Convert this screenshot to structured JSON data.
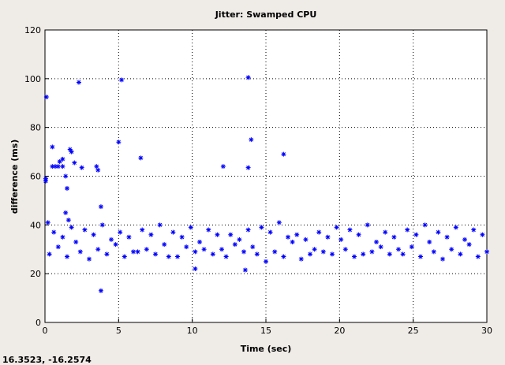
{
  "chart_data": {
    "type": "scatter",
    "title": "Jitter: Swamped CPU",
    "x_label": "Time (sec)",
    "y_label": "difference (ms)",
    "x": [
      0.3,
      0.6,
      0.9,
      1.2,
      1.5,
      1.8,
      2.1,
      2.4,
      2.7,
      3,
      3.3,
      3.6,
      3.9,
      4.2,
      4.5,
      4.8,
      5.1,
      5.4,
      5.7,
      6,
      6.3,
      6.6,
      6.9,
      7.2,
      7.5,
      7.8,
      8.1,
      8.4,
      8.7,
      9,
      9.3,
      9.6,
      9.9,
      10.2,
      10.5,
      10.8,
      11.1,
      11.4,
      11.7,
      12,
      12.3,
      12.6,
      12.9,
      13.2,
      13.5,
      13.8,
      14.1,
      14.4,
      14.7,
      15,
      15.3,
      15.6,
      15.9,
      16.2,
      16.5,
      16.8,
      17.1,
      17.4,
      17.7,
      18,
      18.3,
      18.6,
      18.9,
      19.2,
      19.5,
      19.8,
      20.1,
      20.4,
      20.7,
      21,
      21.3,
      21.6,
      21.9,
      22.2,
      22.5,
      22.8,
      23.1,
      23.4,
      23.7,
      24,
      24.3,
      24.6,
      24.9,
      25.2,
      25.5,
      25.8,
      26.1,
      26.4,
      26.7,
      27,
      27.3,
      27.6,
      27.9,
      28.2,
      28.5,
      28.8,
      29.1,
      29.4,
      29.7,
      30,
      0.1,
      0.05,
      0.05,
      0.5,
      0.5,
      0.7,
      0.9,
      1.0,
      1.2,
      1.2,
      1.4,
      1.5,
      1.7,
      1.8,
      2.0,
      2.3,
      2.5,
      3.5,
      3.6,
      3.8,
      3.8,
      5.0,
      5.2,
      6.5,
      12.1,
      13.8,
      13.8,
      14.0,
      16.2,
      10.2,
      13.6,
      0.2,
      1.4,
      1.6
    ],
    "values": [
      28,
      37,
      31,
      35,
      27,
      39,
      33,
      29,
      38,
      26,
      36,
      30,
      40,
      28,
      34,
      32,
      37,
      27,
      35,
      29,
      29,
      38,
      30,
      36,
      28,
      40,
      32,
      27,
      37,
      27,
      35,
      31,
      39,
      29,
      33,
      30,
      38,
      28,
      36,
      30,
      27,
      36,
      32,
      34,
      29,
      38,
      31,
      28,
      39,
      25,
      37,
      29,
      41,
      27,
      35,
      33,
      36,
      26,
      34,
      28,
      30,
      37,
      29,
      35,
      28,
      39,
      34,
      30,
      38,
      27,
      36,
      28,
      40,
      29,
      33,
      31,
      37,
      28,
      35,
      30,
      28,
      38,
      31,
      36,
      27,
      40,
      33,
      29,
      37,
      26,
      35,
      30,
      39,
      28,
      34,
      32,
      38,
      27,
      36,
      29,
      92.5,
      59,
      58,
      72,
      64,
      64,
      64,
      66,
      67,
      64,
      60,
      55,
      71,
      70,
      65.5,
      98.5,
      63.5,
      64,
      62.5,
      47.5,
      13,
      74,
      99.5,
      67.5,
      64,
      100.5,
      63.5,
      75,
      69,
      22,
      21.5,
      41,
      45,
      42
    ],
    "color": "#0000ff",
    "xlim": [
      0,
      30
    ],
    "ylim": [
      0,
      120
    ],
    "xticks": [
      0,
      5,
      10,
      15,
      20,
      25,
      30
    ],
    "yticks": [
      0,
      20,
      40,
      60,
      80,
      100,
      120
    ],
    "grid": true
  },
  "status": "16.3523, -16.2574"
}
